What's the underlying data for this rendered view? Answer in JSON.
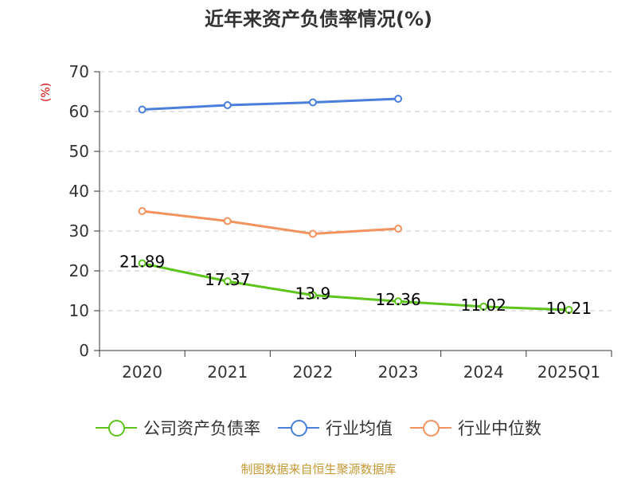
{
  "chart_data": {
    "type": "line",
    "title": "近年来资产负债率情况(%)",
    "ylabel": "(%)",
    "xlabel": "",
    "categories": [
      "2020",
      "2021",
      "2022",
      "2023",
      "2024",
      "2025Q1"
    ],
    "ylim": [
      0,
      70
    ],
    "yticks": [
      "0",
      "10",
      "20",
      "30",
      "40",
      "50",
      "60",
      "70"
    ],
    "grid": true,
    "legend_position": "bottom",
    "series": [
      {
        "name": "公司资产负债率",
        "color": "#5cc41b",
        "values": [
          21.89,
          17.37,
          13.9,
          12.36,
          11.02,
          10.21
        ],
        "labels": [
          "21.89",
          "17.37",
          "13.9",
          "12.36",
          "11.02",
          "10.21"
        ]
      },
      {
        "name": "行业均值",
        "color": "#4a7fdb",
        "values": [
          60.5,
          61.6,
          62.3,
          63.2,
          null,
          null
        ]
      },
      {
        "name": "行业中位数",
        "color": "#f5935e",
        "values": [
          35.0,
          32.5,
          29.3,
          30.6,
          null,
          null
        ]
      }
    ]
  },
  "source": "制图数据来自恒生聚源数据库"
}
